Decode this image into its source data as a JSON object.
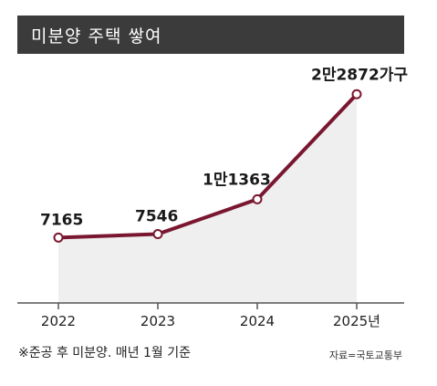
{
  "title": "미분양 주택 쌓여",
  "footnote": "※준공 후 미분양. 매년 1월 기준",
  "source": "자료=국토교통부",
  "colors": {
    "line": "#7a1730",
    "area": "#efefef",
    "title_bg": "#3b3b3b",
    "house": "#c4c4c4"
  },
  "icon": "house-icon",
  "chart_data": {
    "type": "area",
    "categories": [
      "2022",
      "2023",
      "2024",
      "2025년"
    ],
    "values": [
      7165,
      7546,
      11363,
      22872
    ],
    "value_labels": [
      "7165",
      "7546",
      "1만1363",
      "2만2872가구"
    ],
    "ylim": [
      0,
      24000
    ],
    "grid": false,
    "legend": "none"
  }
}
